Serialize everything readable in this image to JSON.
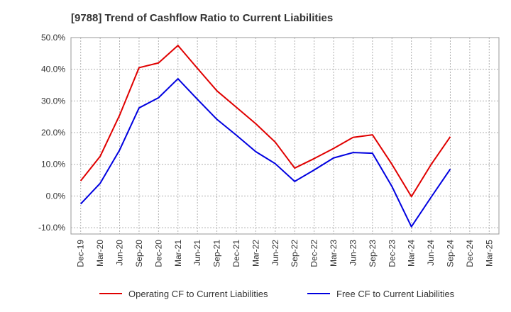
{
  "chart_data": {
    "type": "line",
    "title": "[9788]  Trend of Cashflow Ratio to Current Liabilities",
    "xlabel": "",
    "ylabel": "",
    "categories": [
      "Dec-19",
      "Mar-20",
      "Jun-20",
      "Sep-20",
      "Dec-20",
      "Mar-21",
      "Jun-21",
      "Sep-21",
      "Dec-21",
      "Mar-22",
      "Jun-22",
      "Sep-22",
      "Dec-22",
      "Mar-23",
      "Jun-23",
      "Sep-23",
      "Dec-23",
      "Mar-24",
      "Jun-24",
      "Sep-24",
      "Dec-24",
      "Mar-25"
    ],
    "yticks": [
      "50.0%",
      "40.0%",
      "30.0%",
      "20.0%",
      "10.0%",
      "0.0%",
      "-10.0%"
    ],
    "ylim": [
      -12,
      50
    ],
    "grid": true,
    "legend_position": "bottom",
    "series": [
      {
        "name": "Operating CF to Current Liabilities",
        "color": "#e00000",
        "values": [
          4.8,
          12.5,
          25.5,
          40.5,
          42.0,
          47.5,
          40.3,
          33.2,
          28.0,
          22.8,
          17.0,
          8.8,
          11.8,
          15.0,
          18.5,
          19.3,
          10.0,
          -0.2,
          9.8,
          18.7,
          null,
          null
        ]
      },
      {
        "name": "Free CF to Current Liabilities",
        "color": "#0000e0",
        "values": [
          -2.5,
          4.0,
          14.5,
          27.8,
          31.0,
          37.0,
          30.5,
          24.2,
          19.2,
          14.0,
          10.2,
          4.6,
          8.2,
          12.0,
          13.7,
          13.5,
          3.0,
          -9.7,
          -0.5,
          8.5,
          null,
          null
        ]
      }
    ]
  }
}
